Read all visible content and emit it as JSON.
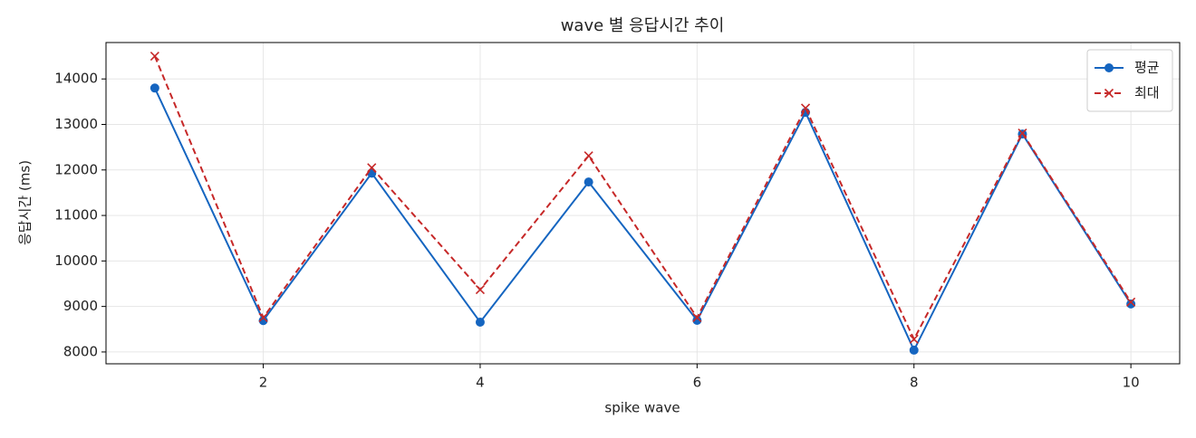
{
  "chart_data": {
    "type": "line",
    "title": "wave 별 응답시간 추이",
    "xlabel": "spike wave",
    "ylabel": "응답시간 (ms)",
    "x": [
      1,
      2,
      3,
      4,
      5,
      6,
      7,
      8,
      9,
      10
    ],
    "series": [
      {
        "name": "평균",
        "color": "#1565c0",
        "marker": "o",
        "linestyle": "solid",
        "values": [
          13800,
          8690,
          11930,
          8655,
          11735,
          8695,
          13265,
          8040,
          12790,
          9055
        ]
      },
      {
        "name": "최대",
        "color": "#c62828",
        "marker": "x",
        "linestyle": "dashed",
        "values": [
          14500,
          8755,
          12050,
          9370,
          12310,
          8755,
          13360,
          8280,
          12810,
          9095
        ]
      }
    ],
    "xlim": [
      0.55,
      10.45
    ],
    "ylim": [
      7740,
      14800
    ],
    "xticks": [
      2,
      4,
      6,
      8,
      10
    ],
    "yticks": [
      8000,
      9000,
      10000,
      11000,
      12000,
      13000,
      14000
    ],
    "grid": true,
    "legend": "upper right"
  }
}
